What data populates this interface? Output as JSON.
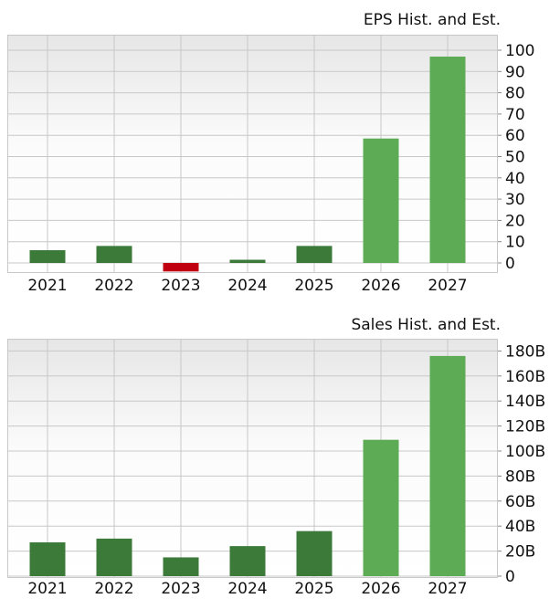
{
  "chart_data": [
    {
      "type": "bar",
      "title": "EPS Hist. and Est.",
      "categories": [
        "2021",
        "2022",
        "2023",
        "2024",
        "2025",
        "2026",
        "2027"
      ],
      "values": [
        6,
        8,
        -4,
        1.5,
        8,
        58.5,
        97
      ],
      "kind": [
        "historical",
        "historical",
        "historical",
        "historical",
        "historical",
        "estimate",
        "estimate"
      ],
      "ylim": [
        -4,
        102
      ],
      "yticks": [
        0,
        10,
        20,
        30,
        40,
        50,
        60,
        70,
        80,
        90,
        100
      ],
      "ytick_labels": [
        "0",
        "10",
        "20",
        "30",
        "40",
        "50",
        "60",
        "70",
        "80",
        "90",
        "100"
      ],
      "grid": true
    },
    {
      "type": "bar",
      "title": "Sales Hist. and Est.",
      "categories": [
        "2021",
        "2022",
        "2023",
        "2024",
        "2025",
        "2026",
        "2027"
      ],
      "values": [
        27,
        30,
        15,
        24,
        36,
        109,
        176
      ],
      "kind": [
        "historical",
        "historical",
        "historical",
        "historical",
        "historical",
        "estimate",
        "estimate"
      ],
      "ylim": [
        0,
        190
      ],
      "yticks": [
        0,
        20,
        40,
        60,
        80,
        100,
        120,
        140,
        160,
        180
      ],
      "ytick_labels": [
        "0",
        "20B",
        "40B",
        "60B",
        "80B",
        "100B",
        "120B",
        "140B",
        "160B",
        "180B"
      ],
      "grid": true
    }
  ],
  "colors": {
    "historical": "#3c7a3a",
    "estimate": "#5eab55",
    "negative": "#c00010"
  }
}
